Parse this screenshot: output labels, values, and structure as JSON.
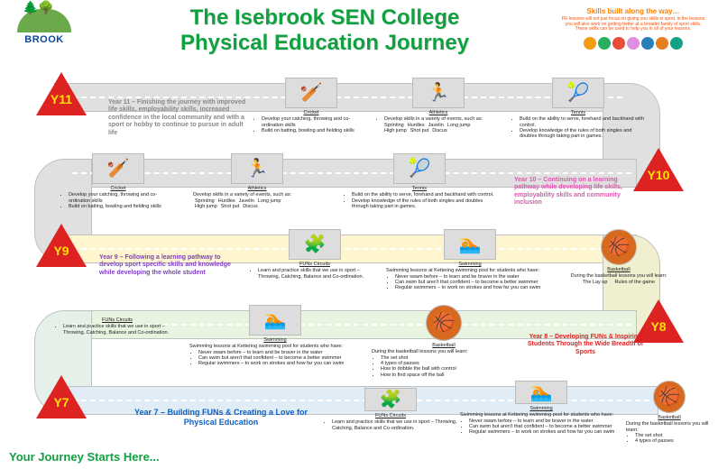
{
  "title_line1": "The Isebrook SEN College",
  "title_line2": "Physical Education Journey",
  "logo_text": "BROOK",
  "start_text": "Your Journey Starts Here...",
  "skills": {
    "heading": "Skills built along the way…",
    "text": "PE lessons will not just focus on giving you skills in sport, in the lessons you will also work on getting better at a broader family of sport skills. These skills can be used to help you in all of your lessons.",
    "circle_colors": [
      "#f39c12",
      "#27ae60",
      "#e74c3c",
      "#e08ee0",
      "#2980b9",
      "#e67e22",
      "#16a085"
    ]
  },
  "years": {
    "y11": {
      "label": "Y11",
      "color": "#888",
      "desc": "Year 11 – Finishing the journey with improved life skills, employability skills, increased confidence in the local community and with a sport or hobby to continue to pursue in adult life"
    },
    "y10": {
      "label": "Y10",
      "color": "#e055b0",
      "desc": "Year 10 – Continuing on a learning pathway while developing life skills, employability skills and community inclusion"
    },
    "y9": {
      "label": "Y9",
      "color": "#8040c0",
      "desc": "Year 9 – Following a learning pathway to develop sport specific skills and knowledge while developing the whole student"
    },
    "y8": {
      "label": "Y8",
      "color": "#e02020",
      "desc": "Year 8 – Developing FUNs & Inspiring Students Through the Wide Breadth of Sports"
    },
    "y7": {
      "label": "Y7",
      "color": "#1060c0",
      "desc": "Year 7 – Building FUNs & Creating a Love for Physical Education"
    }
  },
  "topics": {
    "cricket": {
      "title": "Cricket",
      "bullets": [
        "Develop your catching, throwing and co-ordination skills",
        "Build on batting, bowling and fielding skills"
      ],
      "icon": "🏏"
    },
    "athletics": {
      "title": "Athletics",
      "lead": "Develop skills in a variety of events, such as:",
      "row1": [
        "Sprinting",
        "Hurdles",
        "Javelin",
        "Long jump"
      ],
      "row2": [
        "High jump",
        "Shot put",
        "",
        "Discus"
      ],
      "icon": "🏃"
    },
    "tennis": {
      "title": "Tennis",
      "bullets": [
        "Build on the ability to serve, forehand and backhand with control.",
        "Develop knowledge of the rules of both singles and doubles through taking part in games."
      ],
      "icon": "🎾"
    },
    "funs": {
      "title": "FUNs Circuits",
      "bullets": [
        "Learn and practice skills that we use in sport – Throwing, Catching, Balance and Co-ordination."
      ],
      "icon": "🧩"
    },
    "swimming": {
      "title": "Swimming",
      "lead": "Swimming lessons at Kettering swimming pool for students who have:",
      "bullets": [
        "Never swam before – to learn and be braver in the water",
        "Can swim but aren't that confident – to become a better swimmer",
        "Regular swimmers – to work on strokes and how far you can swim"
      ],
      "icon": "🏊"
    },
    "basketball9": {
      "title": "Basketball",
      "lead": "During the basketball lessons you will learn:",
      "row1": [
        "The Lay up",
        "Rules of the game"
      ],
      "icon": "🏀"
    },
    "basketball8": {
      "title": "Basketball",
      "lead": "During the basketball lessons you will learn:",
      "bullets": [
        "The set shot",
        "4 types of passes",
        "How to dribble the ball with control",
        "How to find space off the ball"
      ],
      "icon": "🏀"
    },
    "basketball7": {
      "title": "Basketball",
      "lead": "During the basketball lessons you will learn:",
      "bullets": [
        "The set shot",
        "4 types of passes"
      ],
      "icon": "🏀"
    }
  },
  "road_colors": {
    "y11": "#e0e0e0",
    "y10": "#e0e0e0",
    "y9_tint": "#fff6d0",
    "y8_tint": "#e8f4e0",
    "y7_tint": "#e0ecf6"
  }
}
